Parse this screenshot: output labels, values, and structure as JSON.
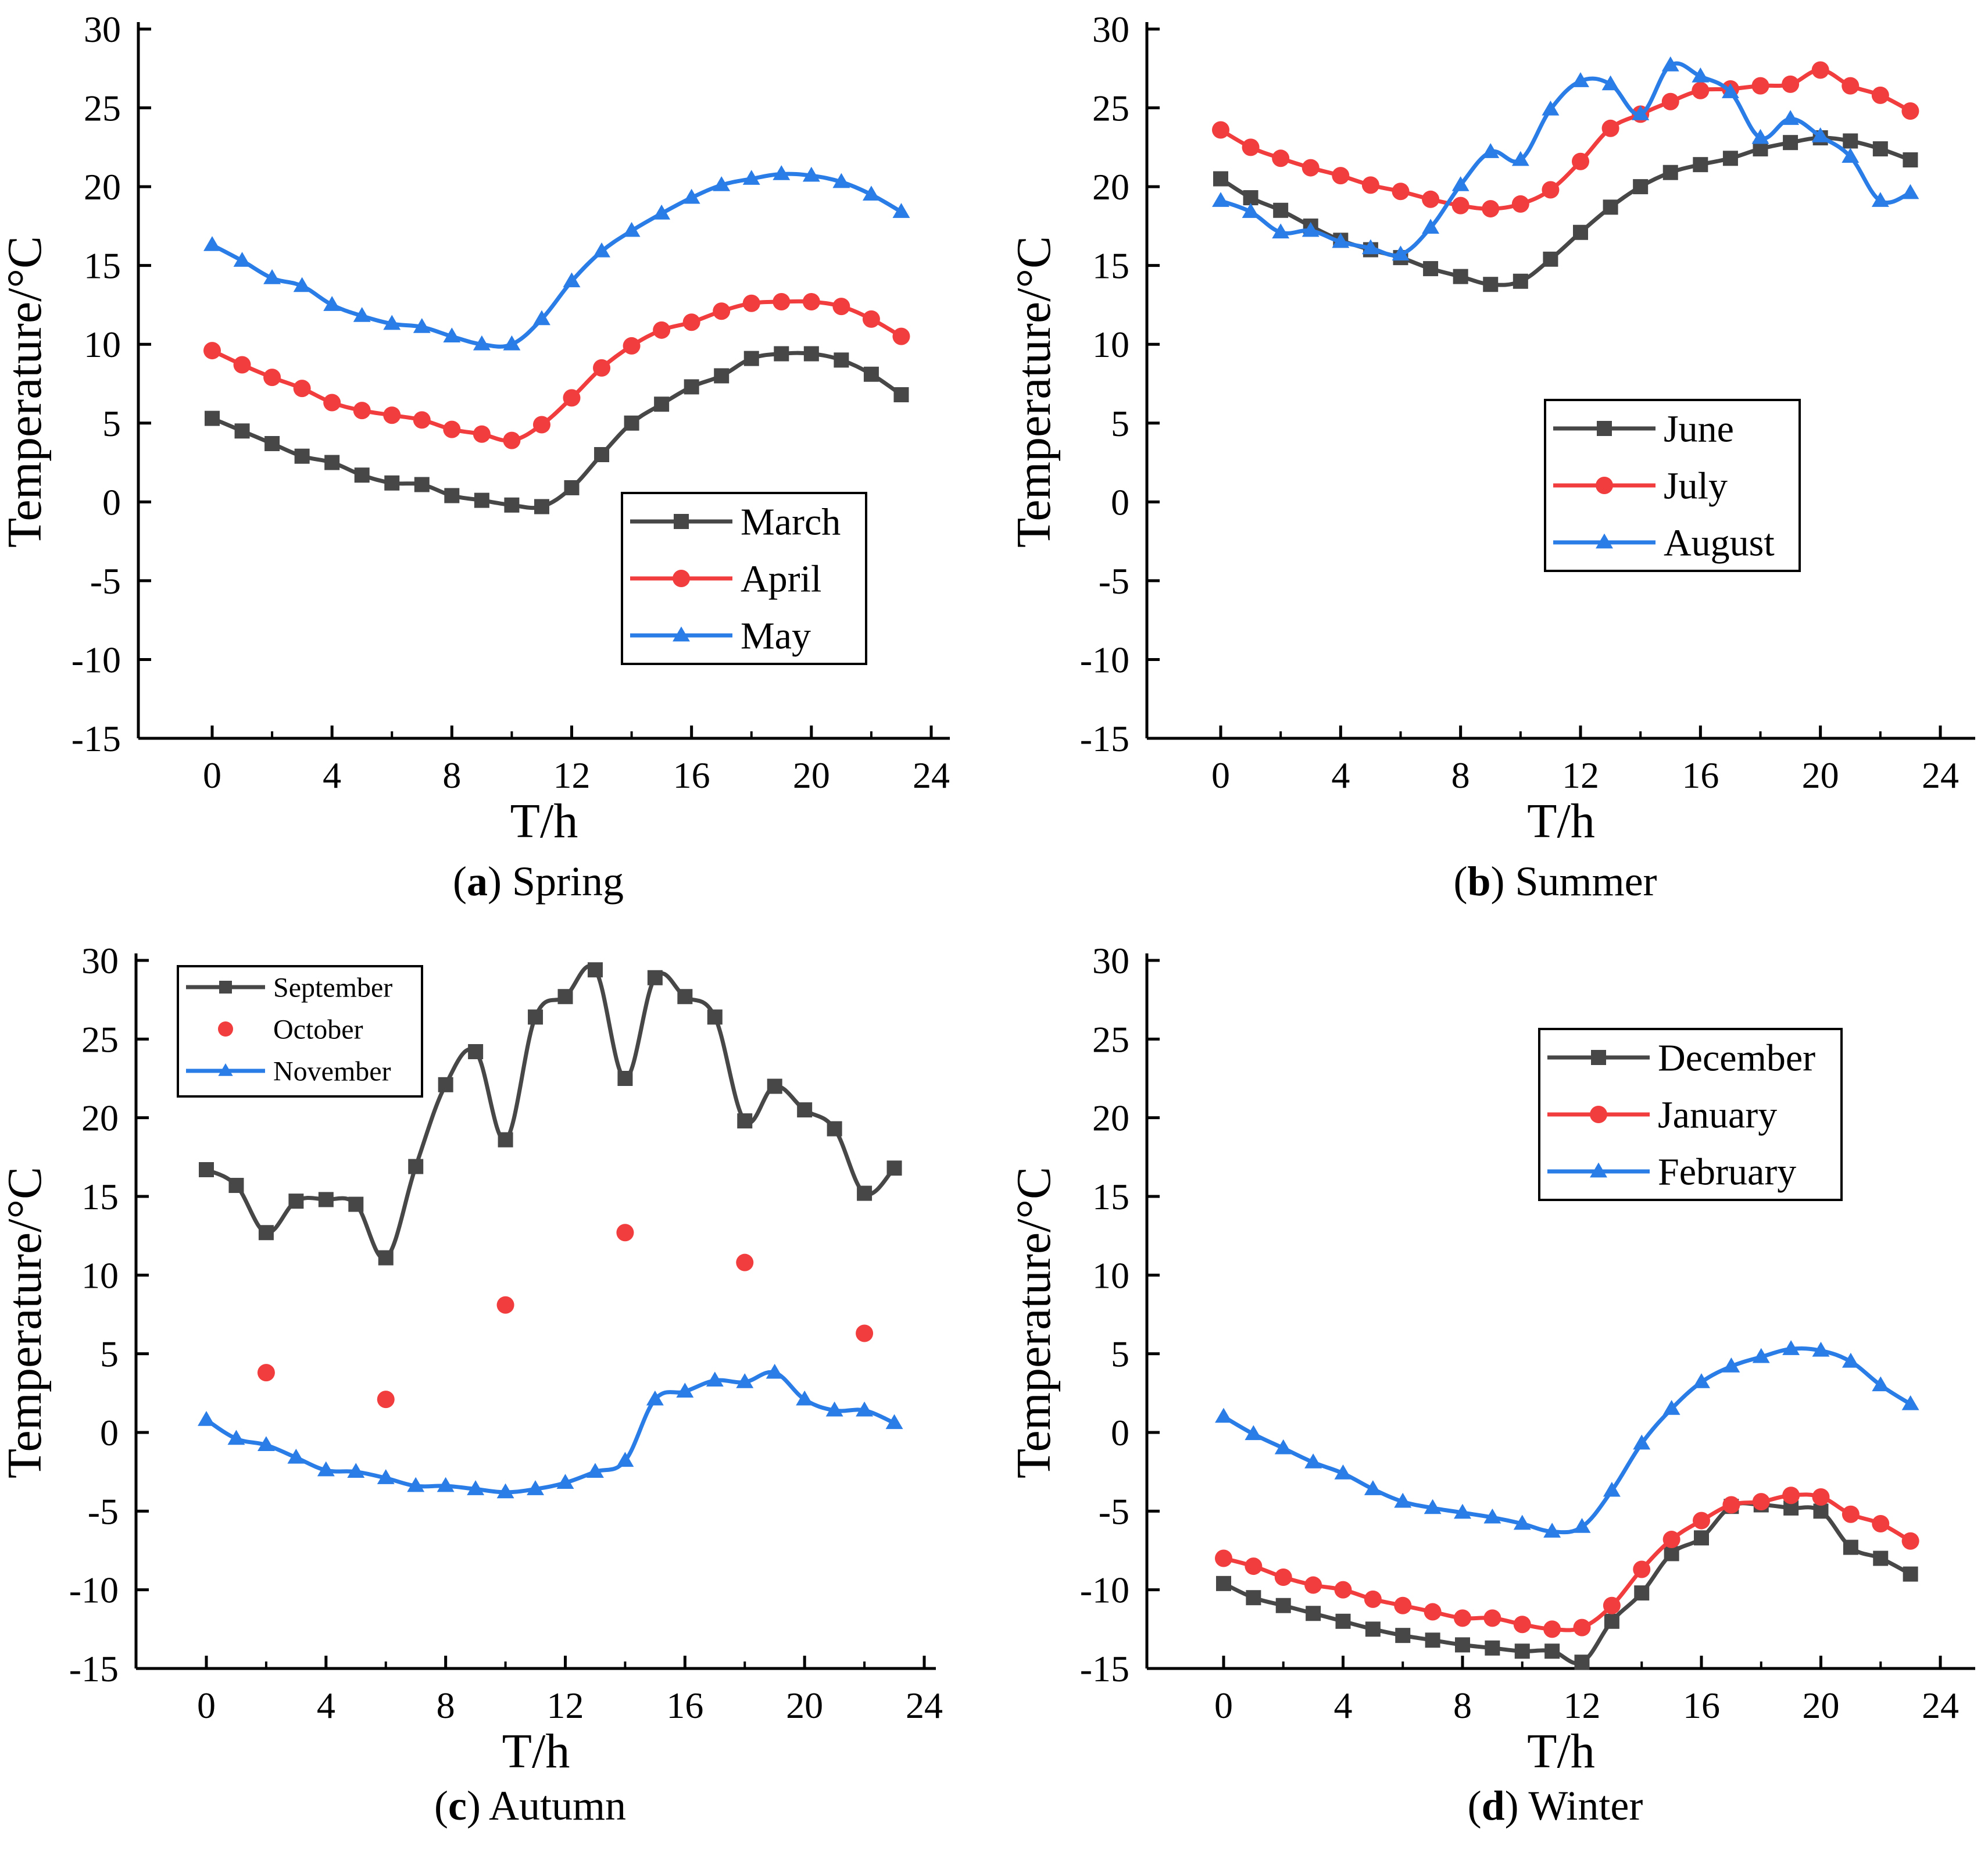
{
  "chart_data": [
    {
      "type": "line",
      "panel": "a",
      "panel_label": "(a)",
      "panel_letter": "a",
      "title": "Spring",
      "xlabel": "T/h",
      "ylabel": "Temperature/°C",
      "xlim": [
        -2,
        25
      ],
      "ylim": [
        -15,
        30
      ],
      "xticks": [
        0,
        4,
        8,
        12,
        16,
        20,
        24
      ],
      "yticks": [
        30,
        25,
        20,
        15,
        10,
        5,
        0,
        -5,
        -10,
        -15
      ],
      "xtick_labels": [
        "0",
        "4",
        "8",
        "12",
        "16",
        "20",
        "24"
      ],
      "ytick_labels": [
        "30",
        "25",
        "20",
        "15",
        "10",
        "5",
        "0",
        "-5",
        "-10",
        "-15"
      ],
      "legend_position": "lower-right",
      "x": [
        0,
        1,
        2,
        3,
        4,
        5,
        6,
        7,
        8,
        9,
        10,
        11,
        12,
        13,
        14,
        15,
        16,
        17,
        18,
        19,
        20,
        21,
        22,
        23
      ],
      "series": [
        {
          "name": "March",
          "color": "#474747",
          "marker": "square",
          "values": [
            5.3,
            4.5,
            3.7,
            2.9,
            2.5,
            1.7,
            1.2,
            1.1,
            0.4,
            0.1,
            -0.2,
            -0.3,
            0.9,
            3.0,
            5.0,
            6.2,
            7.3,
            8.0,
            9.1,
            9.4,
            9.4,
            9.0,
            8.1,
            6.8
          ]
        },
        {
          "name": "April",
          "color": "#f13d3d",
          "marker": "circle",
          "values": [
            9.6,
            8.7,
            7.9,
            7.2,
            6.3,
            5.8,
            5.5,
            5.2,
            4.6,
            4.3,
            3.9,
            4.9,
            6.6,
            8.5,
            9.9,
            10.9,
            11.4,
            12.1,
            12.6,
            12.7,
            12.7,
            12.4,
            11.6,
            10.5
          ]
        },
        {
          "name": "May",
          "color": "#2a7ce6",
          "marker": "triangle",
          "values": [
            16.3,
            15.3,
            14.2,
            13.7,
            12.5,
            11.8,
            11.3,
            11.1,
            10.5,
            10.0,
            10.0,
            11.6,
            14.0,
            15.9,
            17.2,
            18.3,
            19.3,
            20.1,
            20.5,
            20.8,
            20.7,
            20.3,
            19.5,
            18.4
          ]
        }
      ]
    },
    {
      "type": "line",
      "panel": "b",
      "panel_label": "(b)",
      "panel_letter": "b",
      "title": "Summer",
      "xlabel": "T/h",
      "ylabel": "Temperature/°C",
      "xlim": [
        -2,
        25
      ],
      "ylim": [
        -15,
        30
      ],
      "xticks": [
        0,
        4,
        8,
        12,
        16,
        20,
        24
      ],
      "yticks": [
        30,
        25,
        20,
        15,
        10,
        5,
        0,
        -5,
        -10,
        -15
      ],
      "xtick_labels": [
        "0",
        "4",
        "8",
        "12",
        "16",
        "20",
        "24"
      ],
      "ytick_labels": [
        "30",
        "25",
        "20",
        "15",
        "10",
        "5",
        "0",
        "-5",
        "-10",
        "-15"
      ],
      "legend_position": "center-right",
      "x": [
        0,
        1,
        2,
        3,
        4,
        5,
        6,
        7,
        8,
        9,
        10,
        11,
        12,
        13,
        14,
        15,
        16,
        17,
        18,
        19,
        20,
        21,
        22,
        23
      ],
      "series": [
        {
          "name": "June",
          "color": "#474747",
          "marker": "square",
          "values": [
            20.5,
            19.3,
            18.5,
            17.5,
            16.6,
            16.0,
            15.5,
            14.8,
            14.3,
            13.8,
            14.0,
            15.4,
            17.1,
            18.7,
            20.0,
            20.9,
            21.4,
            21.8,
            22.4,
            22.8,
            23.1,
            22.9,
            22.4,
            21.7
          ]
        },
        {
          "name": "July",
          "color": "#f13d3d",
          "marker": "circle",
          "values": [
            23.6,
            22.5,
            21.8,
            21.2,
            20.7,
            20.1,
            19.7,
            19.2,
            18.8,
            18.6,
            18.9,
            19.8,
            21.6,
            23.7,
            24.6,
            25.4,
            26.1,
            26.2,
            26.4,
            26.5,
            27.4,
            26.4,
            25.8,
            24.8
          ]
        },
        {
          "name": "August",
          "color": "#2a7ce6",
          "marker": "triangle",
          "values": [
            19.1,
            18.4,
            17.1,
            17.2,
            16.5,
            16.1,
            15.7,
            17.4,
            20.1,
            22.2,
            21.7,
            24.9,
            26.7,
            26.5,
            24.6,
            27.7,
            27.0,
            26.0,
            23.1,
            24.3,
            23.2,
            21.9,
            19.1,
            19.6
          ]
        }
      ]
    },
    {
      "type": "line",
      "panel": "c",
      "panel_label": "(c)",
      "panel_letter": "c",
      "title": "Autumn",
      "xlabel": "T/h",
      "ylabel": "Temperature/°C",
      "xlim": [
        -2,
        25
      ],
      "ylim": [
        -15,
        30
      ],
      "xticks": [
        0,
        4,
        8,
        12,
        16,
        20,
        24
      ],
      "yticks": [
        30,
        25,
        20,
        15,
        10,
        5,
        0,
        -5,
        -10,
        -15
      ],
      "xtick_labels": [
        "0",
        "4",
        "8",
        "12",
        "16",
        "20",
        "24"
      ],
      "ytick_labels": [
        "30",
        "25",
        "20",
        "15",
        "10",
        "5",
        "0",
        "-5",
        "-10",
        "-15"
      ],
      "legend_position": "top-left",
      "x": [
        0,
        1,
        2,
        3,
        4,
        5,
        6,
        7,
        8,
        9,
        10,
        11,
        12,
        13,
        14,
        15,
        16,
        17,
        18,
        19,
        20,
        21,
        22,
        23
      ],
      "series": [
        {
          "name": "September",
          "color": "#474747",
          "marker": "square",
          "values": [
            16.7,
            15.7,
            12.7,
            14.7,
            14.8,
            14.5,
            11.1,
            16.9,
            22.1,
            24.2,
            18.6,
            26.4,
            27.7,
            29.4,
            22.5,
            28.9,
            27.7,
            26.4,
            19.8,
            22.0,
            20.5,
            19.3,
            15.2,
            16.8
          ]
        },
        {
          "name": "October",
          "color": "#f13d3d",
          "marker": "circle",
          "points": [
            [
              2,
              3.8
            ],
            [
              6,
              2.1
            ],
            [
              10,
              8.1
            ],
            [
              14,
              12.7
            ],
            [
              18,
              10.8
            ],
            [
              22,
              6.3
            ]
          ]
        },
        {
          "name": "November",
          "color": "#2a7ce6",
          "marker": "triangle",
          "values": [
            0.8,
            -0.4,
            -0.8,
            -1.6,
            -2.4,
            -2.5,
            -2.9,
            -3.4,
            -3.4,
            -3.6,
            -3.8,
            -3.6,
            -3.2,
            -2.5,
            -1.8,
            2.1,
            2.6,
            3.3,
            3.2,
            3.8,
            2.1,
            1.4,
            1.4,
            0.6
          ]
        }
      ]
    },
    {
      "type": "line",
      "panel": "d",
      "panel_label": "(d)",
      "panel_letter": "d",
      "title": "Winter",
      "xlabel": "T/h",
      "ylabel": "Temperature/°C",
      "xlim": [
        -2,
        25
      ],
      "ylim": [
        -15,
        30
      ],
      "xticks": [
        0,
        4,
        8,
        12,
        16,
        20,
        24
      ],
      "yticks": [
        30,
        25,
        20,
        15,
        10,
        5,
        0,
        -5,
        -10,
        -15
      ],
      "xtick_labels": [
        "0",
        "4",
        "8",
        "12",
        "16",
        "20",
        "24"
      ],
      "ytick_labels": [
        "30",
        "25",
        "20",
        "15",
        "10",
        "5",
        "0",
        "-5",
        "-10",
        "-15"
      ],
      "legend_position": "top-right",
      "x": [
        0,
        1,
        2,
        3,
        4,
        5,
        6,
        7,
        8,
        9,
        10,
        11,
        12,
        13,
        14,
        15,
        16,
        17,
        18,
        19,
        20,
        21,
        22,
        23
      ],
      "series": [
        {
          "name": "December",
          "color": "#474747",
          "marker": "square",
          "values": [
            -9.6,
            -10.5,
            -11.0,
            -11.5,
            -12.0,
            -12.5,
            -12.9,
            -13.2,
            -13.5,
            -13.7,
            -13.9,
            -13.9,
            -14.6,
            -12.0,
            -10.2,
            -7.7,
            -6.7,
            -4.7,
            -4.6,
            -4.8,
            -5.0,
            -7.3,
            -8.0,
            -9.0
          ]
        },
        {
          "name": "January",
          "color": "#f13d3d",
          "marker": "circle",
          "values": [
            -8.0,
            -8.5,
            -9.2,
            -9.7,
            -10.0,
            -10.6,
            -11.0,
            -11.4,
            -11.8,
            -11.8,
            -12.2,
            -12.5,
            -12.4,
            -11.0,
            -8.7,
            -6.8,
            -5.6,
            -4.6,
            -4.4,
            -4.0,
            -4.1,
            -5.2,
            -5.8,
            -6.9
          ]
        },
        {
          "name": "February",
          "color": "#2a7ce6",
          "marker": "triangle",
          "values": [
            1.0,
            -0.1,
            -1.0,
            -1.9,
            -2.6,
            -3.6,
            -4.4,
            -4.8,
            -5.1,
            -5.4,
            -5.8,
            -6.3,
            -6.0,
            -3.7,
            -0.7,
            1.5,
            3.2,
            4.2,
            4.8,
            5.3,
            5.2,
            4.5,
            3.0,
            1.8
          ]
        }
      ]
    }
  ]
}
